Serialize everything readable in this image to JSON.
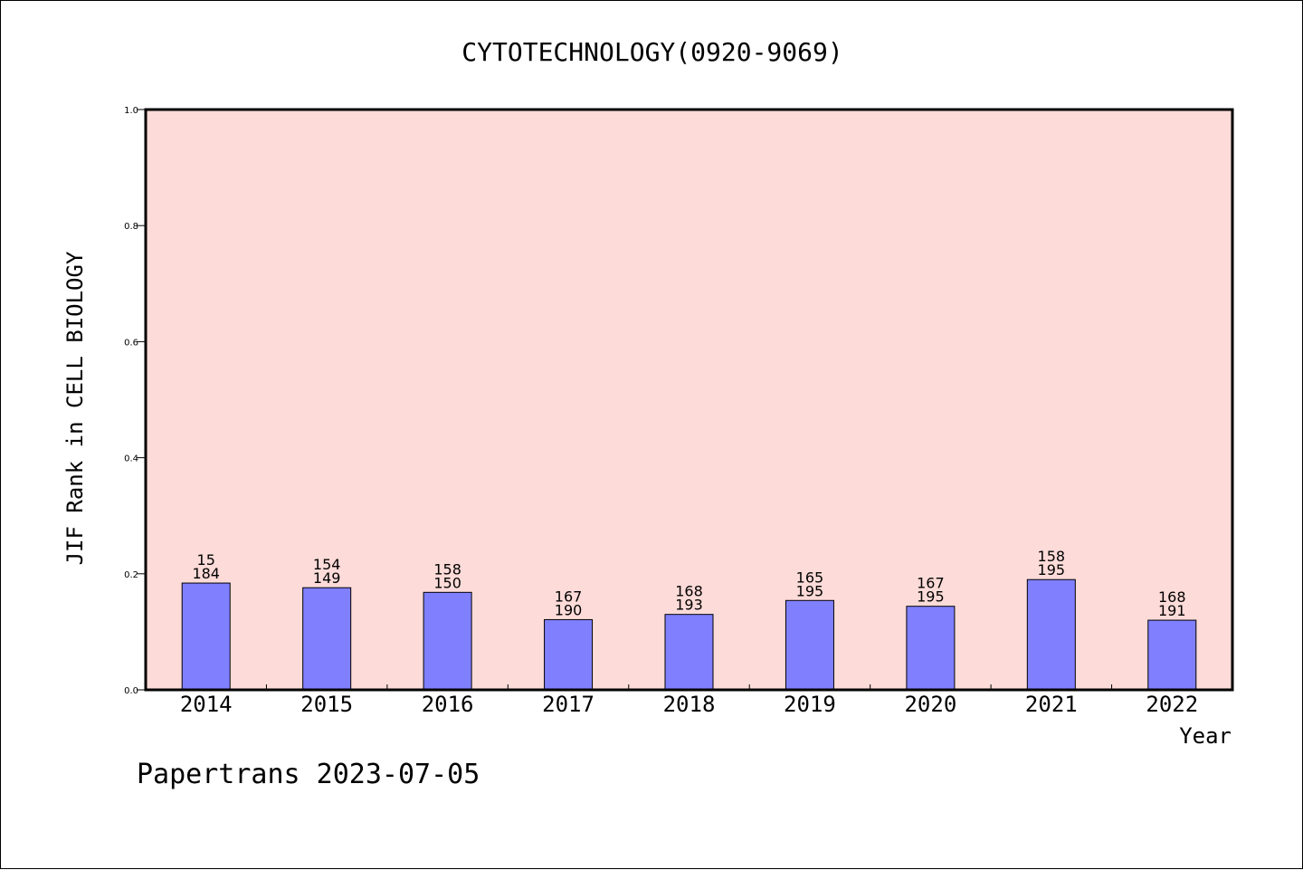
{
  "chart_data": {
    "type": "bar",
    "title": "CYTOTECHNOLOGY(0920-9069)",
    "xlabel": "Year",
    "ylabel": "JIF Rank in CELL BIOLOGY",
    "categories": [
      "2014",
      "2015",
      "2016",
      "2017",
      "2018",
      "2019",
      "2020",
      "2021",
      "2022"
    ],
    "values": [
      0.184,
      0.176,
      0.168,
      0.121,
      0.13,
      0.154,
      0.144,
      0.19,
      0.12
    ],
    "labels_top": [
      "15",
      "154",
      "158",
      "167",
      "168",
      "165",
      "167",
      "158",
      "168"
    ],
    "labels_bottom": [
      "184",
      "149",
      "150",
      "190",
      "193",
      "195",
      "195",
      "195",
      "191"
    ],
    "ylim": [
      0,
      1.0
    ],
    "yticks": [
      "0.0",
      "0.2",
      "0.4",
      "0.6",
      "0.8",
      "1.0"
    ],
    "grid": false,
    "colors": {
      "plot_bg": "#fddbd8",
      "bar": "#8080ff",
      "bar_edge": "#000000"
    }
  },
  "footer": {
    "text": "Papertrans 2023-07-05"
  }
}
